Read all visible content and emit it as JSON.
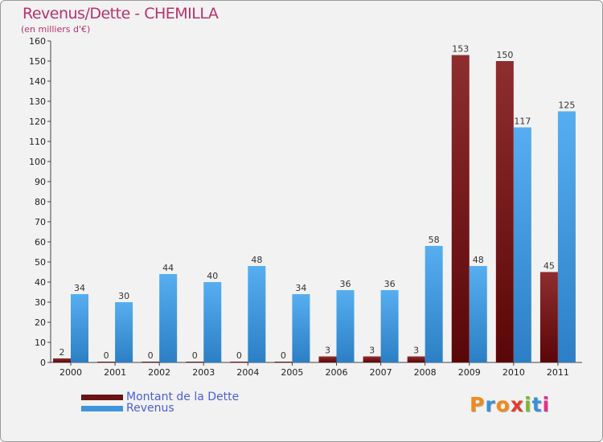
{
  "chart_data": {
    "type": "bar",
    "title": "Revenus/Dette - CHEMILLA",
    "subtitle": "(en milliers d'€)",
    "categories": [
      "2000",
      "2001",
      "2002",
      "2003",
      "2004",
      "2005",
      "2006",
      "2007",
      "2008",
      "2009",
      "2010",
      "2011"
    ],
    "series": [
      {
        "name": "Montant de la Dette",
        "color": "#6b1215",
        "values": [
          2,
          0,
          0,
          0,
          0,
          0,
          3,
          3,
          3,
          153,
          150,
          45
        ]
      },
      {
        "name": "Revenus",
        "color": "#3f95dc",
        "values": [
          34,
          30,
          44,
          40,
          48,
          34,
          36,
          36,
          58,
          48,
          117,
          125
        ]
      }
    ],
    "ylim": [
      0,
      160
    ],
    "yticks": [
      0,
      10,
      20,
      30,
      40,
      50,
      60,
      70,
      80,
      90,
      100,
      110,
      120,
      130,
      140,
      150,
      160
    ],
    "grid": false,
    "legend_position": "bottom-left"
  },
  "logo": {
    "text": "Proxiti",
    "letters": [
      "P",
      "r",
      "o",
      "x",
      "i",
      "t",
      "i"
    ],
    "colors": [
      "#f08a1c",
      "#3a8fd8",
      "#f08a1c",
      "#e53a2f",
      "#7cb82f",
      "#3a8fd8",
      "#e0338a"
    ]
  }
}
